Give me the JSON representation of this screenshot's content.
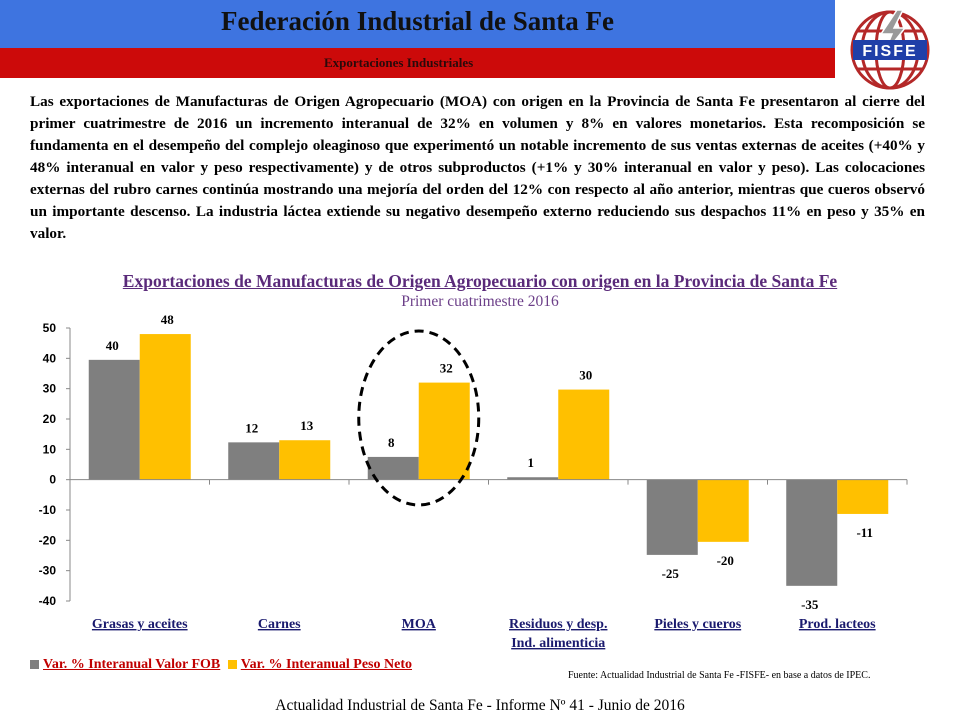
{
  "header": {
    "title": "Federación Industrial de Santa Fe",
    "subtitle": "Exportaciones Industriales",
    "logo_text": "FISFE"
  },
  "body_text": "Las exportaciones de Manufacturas de Origen Agropecuario (MOA) con origen en la Provincia de Santa Fe presentaron al cierre del primer cuatrimestre de 2016 un incremento interanual de 32% en volumen y 8% en valores monetarios. Esta recomposición se fundamenta en el desempeño del complejo oleaginoso que experimentó un notable incremento de sus ventas externas de aceites (+40% y 48% interanual en valor y peso respectivamente) y de otros subproductos (+1% y 30% interanual en valor y peso). Las colocaciones externas del rubro carnes continúa mostrando una mejoría del orden del 12% con respecto al año anterior, mientras que cueros observó un importante descenso. La industria láctea extiende su negativo desempeño externo reduciendo sus despachos 11% en peso y 35% en valor.",
  "chart_data": {
    "type": "bar",
    "title": "Exportaciones de Manufacturas de Origen Agropecuario con origen en la Provincia de Santa Fe",
    "subtitle": "Primer cuatrimestre 2016",
    "categories": [
      [
        "Grasas y aceites"
      ],
      [
        "Carnes"
      ],
      [
        "MOA"
      ],
      [
        "Residuos y desp.",
        "Ind. alimenticia"
      ],
      [
        "Pieles y cueros"
      ],
      [
        "Prod. lacteos"
      ]
    ],
    "series": [
      {
        "name": "Var. % Interanual Valor FOB",
        "color": "#7f7f7f",
        "values": [
          39.5,
          12.3,
          7.5,
          0.8,
          -24.8,
          -35
        ],
        "labels": [
          "40",
          "12",
          "8",
          "1",
          "-25",
          "-35"
        ]
      },
      {
        "name": "Var. % Interanual Peso Neto",
        "color": "#ffc000",
        "values": [
          48,
          13,
          32,
          29.7,
          -20.5,
          -11.3
        ],
        "labels": [
          "48",
          "13",
          "32",
          "30",
          "-20",
          "-11"
        ]
      }
    ],
    "ylim": [
      -40,
      50
    ],
    "yticks": [
      50,
      40,
      30,
      20,
      10,
      0,
      -10,
      -20,
      -30,
      -40
    ],
    "ytick_labels": [
      "50",
      "40",
      "30",
      "20",
      "10",
      "0",
      "-10",
      "-20",
      "-30",
      "-40"
    ],
    "highlight_category": 2,
    "highlight_color": "#000000",
    "grid": false,
    "legend_position": "bottom-left"
  },
  "source": "Fuente: Actualidad Industrial de Santa Fe -FISFE- en base a datos de IPEC.",
  "footer": "Actualidad Industrial de Santa Fe - Informe Nº 41 - Junio de 2016"
}
